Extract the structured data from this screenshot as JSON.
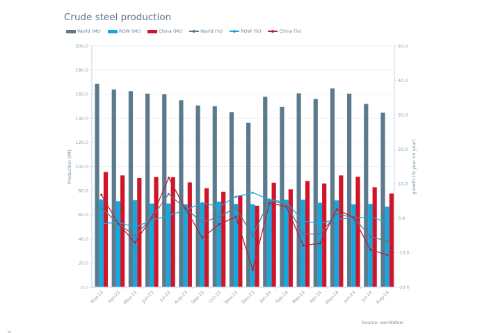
{
  "chart_data": {
    "type": "bar",
    "title": "Crude steel production",
    "source": "Source: worldsteel",
    "categories": [
      "Mar-23",
      "Apr-23",
      "May-23",
      "Jun-23",
      "Jul-23",
      "Aug-23",
      "Sep-23",
      "Oct-23",
      "Nov-23",
      "Dec-23",
      "Jan-24",
      "Feb-24",
      "Mar-24",
      "Apr-24",
      "May-24",
      "Jun-24",
      "Jul-24",
      "Aug-24"
    ],
    "ylabel": "Production (Mt)",
    "y2label": "growth (% year on year)",
    "ylim": [
      0,
      200
    ],
    "y2lim": [
      -20,
      50
    ],
    "yticks": [
      "0.0",
      "20.0",
      "40.0",
      "60.0",
      "80.0",
      "100.0",
      "120.0",
      "140.0",
      "160.0",
      "180.0",
      "200.0"
    ],
    "y2ticks": [
      "-20.0",
      "-10.0",
      "0.0",
      "10.0",
      "20.0",
      "30.0",
      "40.0",
      "50.0"
    ],
    "grid": true,
    "legend_position": "top-left",
    "bar_series": [
      {
        "name": "World (Mt)",
        "color": "#5b7a8e",
        "values": [
          168.5,
          163.9,
          162.4,
          160.4,
          160.0,
          154.9,
          150.6,
          150.0,
          145.1,
          136.2,
          157.9,
          149.4,
          160.6,
          156.0,
          164.7,
          160.4,
          151.9,
          144.7
        ]
      },
      {
        "name": "ROW (Mt)",
        "color": "#13a8e0",
        "values": [
          72.8,
          71.3,
          72.0,
          69.3,
          69.3,
          68.6,
          69.9,
          70.9,
          69.0,
          68.6,
          72.8,
          72.4,
          72.4,
          69.9,
          71.9,
          68.6,
          69.0,
          66.7
        ]
      },
      {
        "name": "China (Mt)",
        "color": "#d0152b",
        "values": [
          95.5,
          92.6,
          90.5,
          91.3,
          91.1,
          86.8,
          82.0,
          79.1,
          76.1,
          67.5,
          86.6,
          81.1,
          88.0,
          85.9,
          92.6,
          91.5,
          82.8,
          77.6
        ]
      }
    ],
    "line_series": [
      {
        "name": "World (%)",
        "color": "#5b7a8e",
        "values": [
          3.0,
          -1.6,
          -5.1,
          0.2,
          7.0,
          2.8,
          -1.2,
          0.4,
          3.0,
          -5.1,
          5.2,
          4.0,
          -4.6,
          -4.6,
          1.2,
          0.2,
          -5.3,
          -6.7
        ]
      },
      {
        "name": "ROW (%)",
        "color": "#13a8e0",
        "values": [
          -1.6,
          -1.2,
          -2.6,
          -0.6,
          0.8,
          2.4,
          4.4,
          3.4,
          6.2,
          7.4,
          5.4,
          4.6,
          -0.8,
          -1.6,
          -0.2,
          0.0,
          0.4,
          -1.2
        ]
      },
      {
        "name": "China (%)",
        "color": "#b5213a",
        "values": [
          6.8,
          -1.6,
          -7.1,
          0.2,
          11.7,
          2.8,
          -5.7,
          -1.8,
          0.4,
          -14.9,
          4.4,
          3.4,
          -7.9,
          -7.3,
          2.6,
          0.2,
          -9.1,
          -10.7
        ]
      }
    ]
  }
}
